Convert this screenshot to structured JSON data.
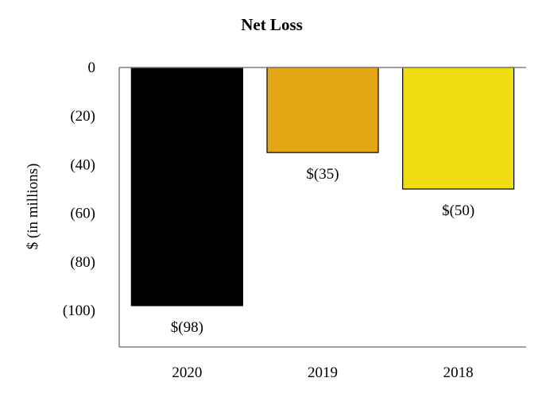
{
  "chart_data": {
    "type": "bar",
    "title": "Net Loss",
    "xlabel": "",
    "ylabel": "$ (in millions)",
    "categories": [
      "2020",
      "2019",
      "2018"
    ],
    "values": [
      -98,
      -35,
      -50
    ],
    "data_labels": [
      "$(98)",
      "$(35)",
      "$(50)"
    ],
    "bar_colors": [
      "#000000",
      "#E5A615",
      "#F0DE12"
    ],
    "ylim": [
      -115,
      0
    ],
    "yticks": [
      0,
      -20,
      -40,
      -60,
      -80,
      -100
    ],
    "ytick_labels": [
      "0",
      "(20)",
      "(40)",
      "(60)",
      "(80)",
      "(100)"
    ],
    "grid": false,
    "legend": "none"
  }
}
